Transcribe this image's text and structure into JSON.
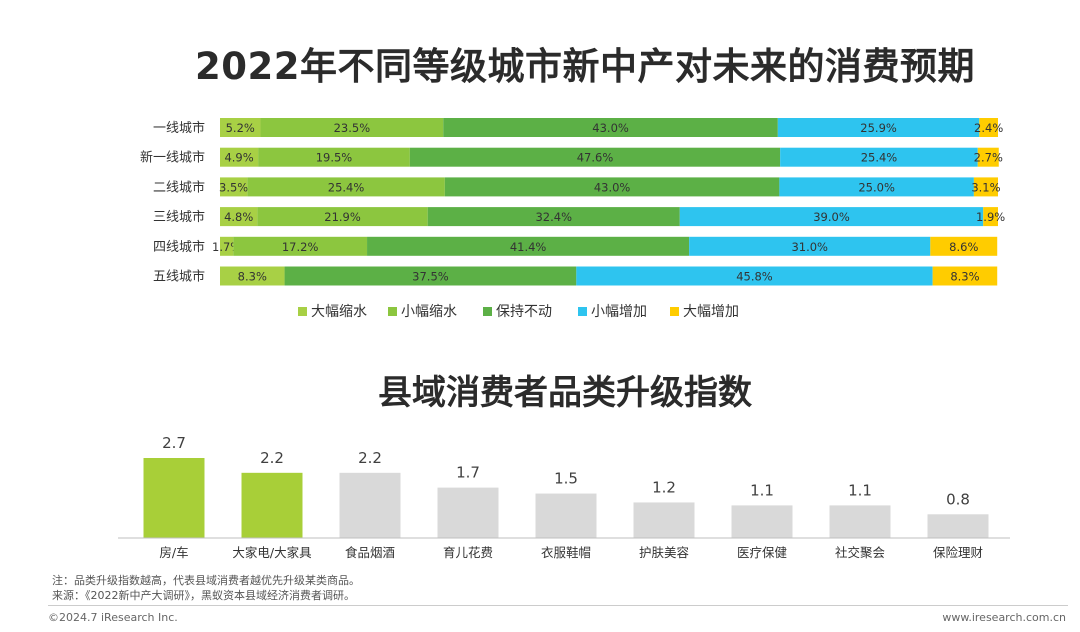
{
  "title1": "2022年不同等级城市新中产对未来的消费预期",
  "title2": "县域消费者品类升级指数",
  "chart_data": [
    {
      "type": "bar",
      "orientation": "horizontal",
      "stacked": "100%",
      "title": "2022年不同等级城市新中产对未来的消费预期",
      "categories": [
        "一线城市",
        "新一线城市",
        "二线城市",
        "三线城市",
        "四线城市",
        "五线城市"
      ],
      "series": [
        {
          "name": "大幅缩水",
          "color": "#a8d045",
          "values": [
            5.2,
            4.9,
            3.5,
            4.8,
            1.7,
            8.3
          ],
          "labels": [
            "5.2%",
            "4.9%",
            "3.5%",
            "4.8%",
            "1.7%",
            "8.3%"
          ]
        },
        {
          "name": "小幅缩水",
          "color": "#8cc63f",
          "values": [
            23.5,
            19.5,
            25.4,
            21.9,
            17.2,
            0
          ],
          "labels": [
            "23.5%",
            "19.5%",
            "25.4%",
            "21.9%",
            "17.2%",
            ""
          ]
        },
        {
          "name": "保持不动",
          "color": "#5cb046",
          "values": [
            43.0,
            47.6,
            43.0,
            32.4,
            41.4,
            37.5
          ],
          "labels": [
            "43.0%",
            "47.6%",
            "43.0%",
            "32.4%",
            "41.4%",
            "37.5%"
          ]
        },
        {
          "name": "小幅增加",
          "color": "#2ec4ef",
          "values": [
            25.9,
            25.4,
            25.0,
            39.0,
            31.0,
            45.8
          ],
          "labels": [
            "25.9%",
            "25.4%",
            "25.0%",
            "39.0%",
            "31.0%",
            "45.8%"
          ]
        },
        {
          "name": "大幅增加",
          "color": "#ffcc00",
          "values": [
            2.4,
            2.7,
            3.1,
            1.9,
            8.6,
            8.3
          ],
          "labels": [
            "2.4%",
            "2.7%",
            "3.1%",
            "1.9%",
            "8.6%",
            "8.3%"
          ]
        }
      ],
      "legend_position": "bottom"
    },
    {
      "type": "bar",
      "title": "县域消费者品类升级指数",
      "categories": [
        "房/车",
        "大家电/大家具",
        "食品烟酒",
        "育儿花费",
        "衣服鞋帽",
        "护肤美容",
        "医疗保健",
        "社交聚会",
        "保险理财"
      ],
      "values": [
        2.7,
        2.2,
        2.2,
        1.7,
        1.5,
        1.2,
        1.1,
        1.1,
        0.8
      ],
      "labels": [
        "2.7",
        "2.2",
        "2.2",
        "1.7",
        "1.5",
        "1.2",
        "1.1",
        "1.1",
        "0.8"
      ],
      "highlight_color": "#a8cf38",
      "default_color": "#d9d9d9",
      "highlighted": [
        0,
        1
      ]
    }
  ],
  "footnote": {
    "note": "注：品类升级指数越高，代表县域消费者越优先升级某类商品。",
    "source": "来源：《2022新中产大调研》，黑蚁资本县域经济消费者调研。"
  },
  "footer": {
    "copyright": "©2024.7 iResearch Inc.",
    "url": "www.iresearch.com.cn"
  }
}
